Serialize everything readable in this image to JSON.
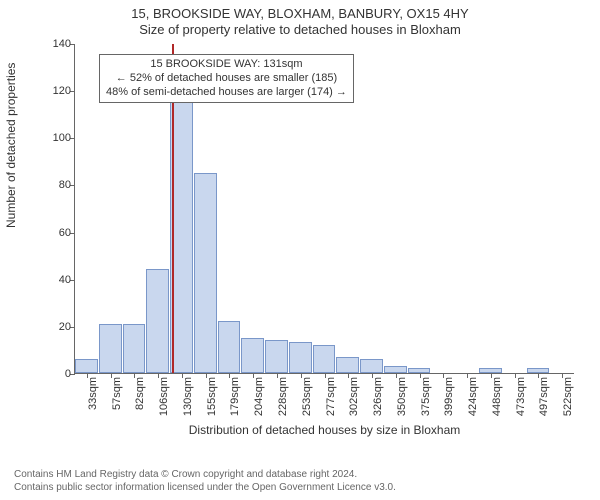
{
  "title": "15, BROOKSIDE WAY, BLOXHAM, BANBURY, OX15 4HY",
  "subtitle": "Size of property relative to detached houses in Bloxham",
  "chart": {
    "type": "histogram",
    "x_axis_label": "Distribution of detached houses by size in Bloxham",
    "y_axis_label": "Number of detached properties",
    "bar_fill": "#c9d7ee",
    "bar_border": "#7a97c9",
    "marker_color": "#b02828",
    "background_color": "#ffffff",
    "axis_color": "#666666",
    "ylim": [
      0,
      140
    ],
    "ytick_step": 20,
    "y_ticks": [
      0,
      20,
      40,
      60,
      80,
      100,
      120,
      140
    ],
    "categories": [
      "33sqm",
      "57sqm",
      "82sqm",
      "106sqm",
      "130sqm",
      "155sqm",
      "179sqm",
      "204sqm",
      "228sqm",
      "253sqm",
      "277sqm",
      "302sqm",
      "326sqm",
      "350sqm",
      "375sqm",
      "399sqm",
      "424sqm",
      "448sqm",
      "473sqm",
      "497sqm",
      "522sqm"
    ],
    "values": [
      6,
      21,
      21,
      44,
      117,
      85,
      22,
      15,
      14,
      13,
      12,
      7,
      6,
      3,
      2,
      0,
      0,
      2,
      0,
      2,
      0
    ],
    "marker_index": 4
  },
  "annotation": {
    "line1": "15 BROOKSIDE WAY: 131sqm",
    "line2": "← 52% of detached houses are smaller (185)",
    "line3": "48% of semi-detached houses are larger (174) →"
  },
  "footer": {
    "line1": "Contains HM Land Registry data © Crown copyright and database right 2024.",
    "line2": "Contains public sector information licensed under the Open Government Licence v3.0."
  }
}
